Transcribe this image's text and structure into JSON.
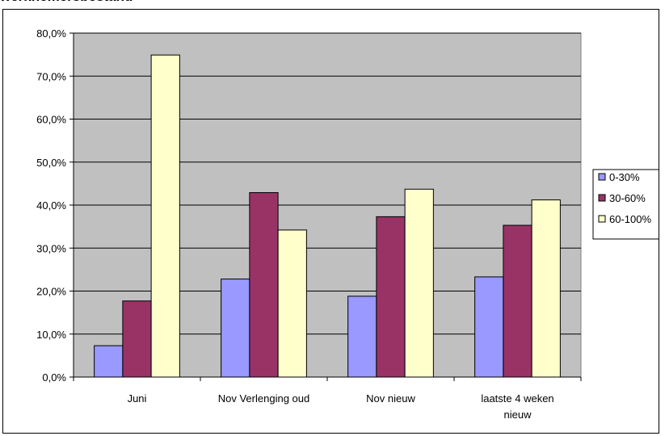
{
  "page": {
    "title": "werknemersbestand"
  },
  "chart_data": {
    "type": "bar",
    "categories": [
      "Juni",
      "Nov Verlenging oud",
      "Nov nieuw",
      "laatste 4 weken nieuw"
    ],
    "series": [
      {
        "name": "0-30%",
        "values": [
          7.3,
          22.8,
          18.8,
          23.3
        ],
        "color": "#9999ff"
      },
      {
        "name": "30-60%",
        "values": [
          17.7,
          42.9,
          37.3,
          35.3
        ],
        "color": "#993366"
      },
      {
        "name": "60-100%",
        "values": [
          74.9,
          34.2,
          43.7,
          41.2
        ],
        "color": "#ffffcc"
      }
    ],
    "yticks": [
      "0,0%",
      "10,0%",
      "20,0%",
      "30,0%",
      "40,0%",
      "50,0%",
      "60,0%",
      "70,0%",
      "80,0%"
    ],
    "ylim": [
      0,
      80
    ],
    "plot_background": "#c0c0c0",
    "grid": true,
    "legend_position": "right"
  }
}
